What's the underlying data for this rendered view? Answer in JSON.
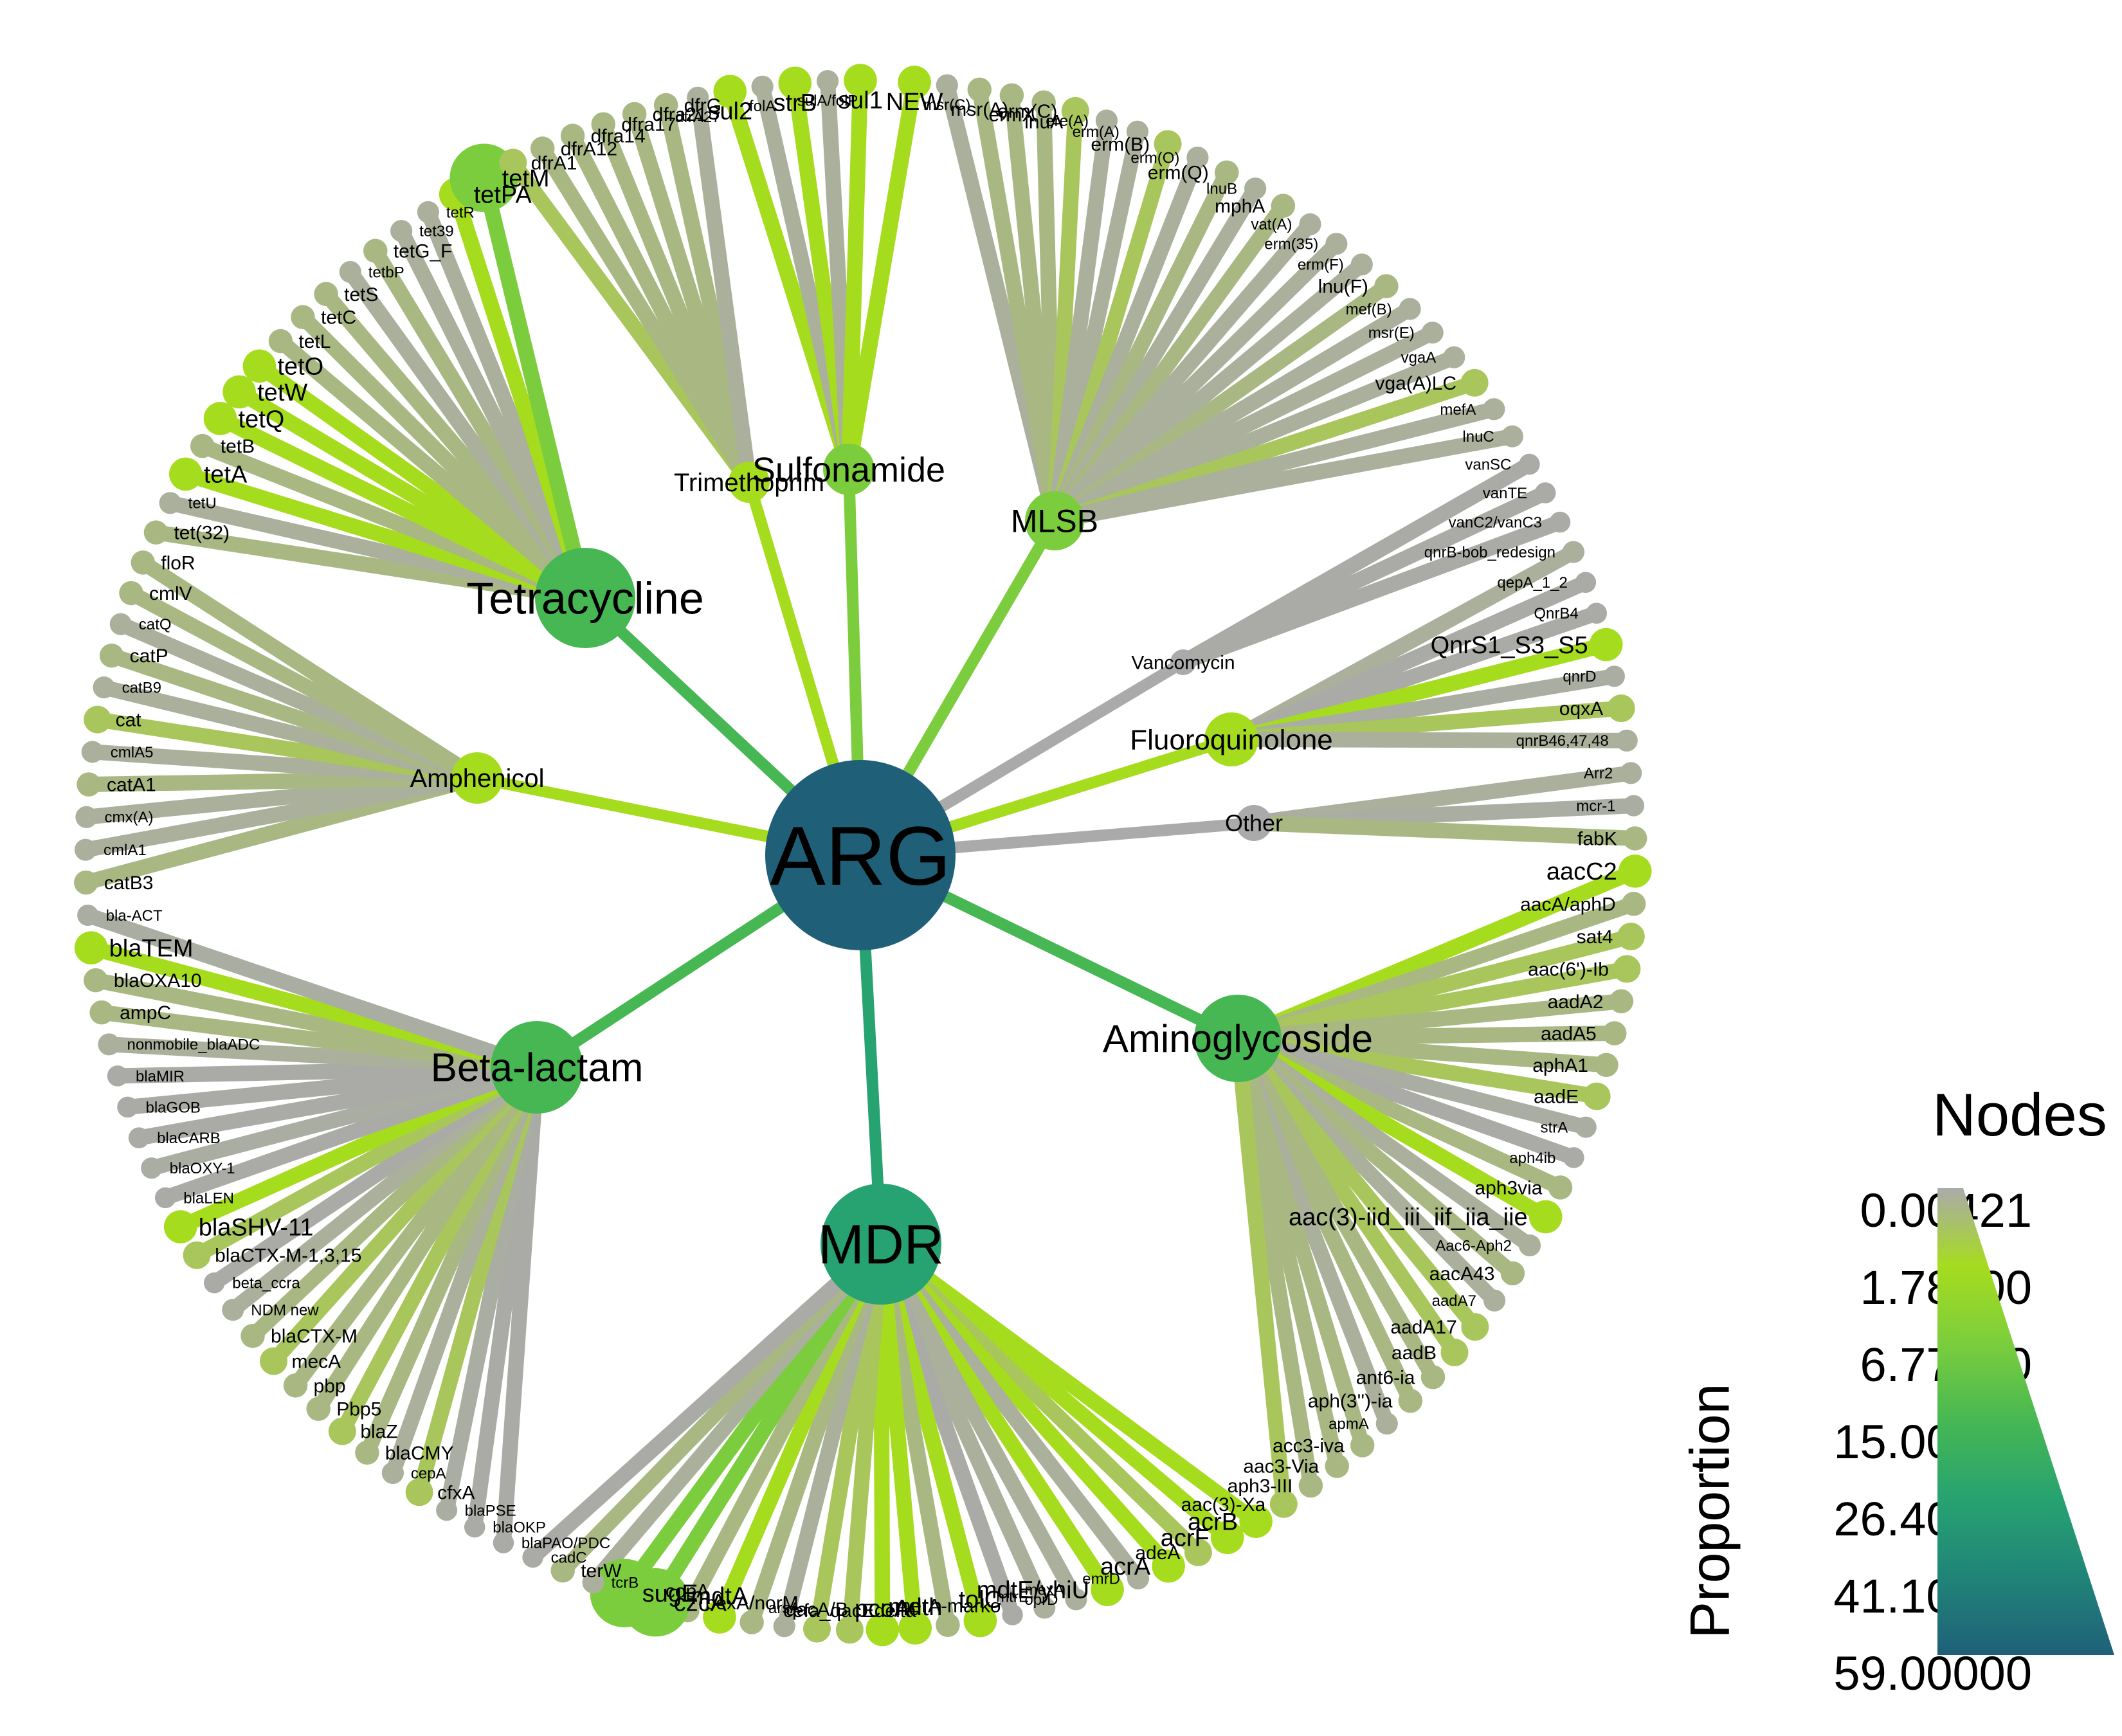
{
  "diagram": {
    "root": {
      "label": "ARG",
      "proportion": 59.0
    },
    "categories": [
      {
        "label": "Tetracycline",
        "proportion": 15.0
      },
      {
        "label": "Sulfonamide",
        "proportion": 6.77
      },
      {
        "label": "Trimethoprim",
        "proportion": 1.78
      },
      {
        "label": "MLSB",
        "proportion": 6.77
      },
      {
        "label": "Vancomycin",
        "proportion": 0.00421
      },
      {
        "label": "Fluoroquinolone",
        "proportion": 1.78
      },
      {
        "label": "Other",
        "proportion": 0.00421
      },
      {
        "label": "Aminoglycoside",
        "proportion": 15.0
      },
      {
        "label": "MDR",
        "proportion": 26.4
      },
      {
        "label": "Beta-lactam",
        "proportion": 15.0
      },
      {
        "label": "Amphenicol",
        "proportion": 1.78
      }
    ],
    "leaves": [
      {
        "label": "NEW",
        "cat": "Sulfonamide",
        "v": 1.78
      },
      {
        "label": "msr(C)",
        "cat": "MLSB",
        "v": 0.2
      },
      {
        "label": "msr(A)",
        "cat": "MLSB",
        "v": 0.5
      },
      {
        "label": "ermX",
        "cat": "MLSB",
        "v": 0.5
      },
      {
        "label": "lnuA",
        "cat": "MLSB",
        "v": 0.5
      },
      {
        "label": "erm(C)",
        "cat": "MLSB",
        "v": 1.0
      },
      {
        "label": "ere(A)",
        "cat": "MLSB",
        "v": 0.2
      },
      {
        "label": "erm(A)",
        "cat": "MLSB",
        "v": 0.2
      },
      {
        "label": "erm(B)",
        "cat": "MLSB",
        "v": 1.0
      },
      {
        "label": "erm(O)",
        "cat": "MLSB",
        "v": 0.2
      },
      {
        "label": "erm(Q)",
        "cat": "MLSB",
        "v": 0.5
      },
      {
        "label": "lnuB",
        "cat": "MLSB",
        "v": 0.2
      },
      {
        "label": "mphA",
        "cat": "MLSB",
        "v": 0.5
      },
      {
        "label": "vat(A)",
        "cat": "MLSB",
        "v": 0.2
      },
      {
        "label": "erm(35)",
        "cat": "MLSB",
        "v": 0.2
      },
      {
        "label": "erm(F)",
        "cat": "MLSB",
        "v": 0.2
      },
      {
        "label": "lnu(F)",
        "cat": "MLSB",
        "v": 0.5
      },
      {
        "label": "mef(B)",
        "cat": "MLSB",
        "v": 0.2
      },
      {
        "label": "msr(E)",
        "cat": "MLSB",
        "v": 0.2
      },
      {
        "label": "vgaA",
        "cat": "MLSB",
        "v": 0.2
      },
      {
        "label": "vga(A)LC",
        "cat": "MLSB",
        "v": 1.0
      },
      {
        "label": "mefA",
        "cat": "MLSB",
        "v": 0.2
      },
      {
        "label": "lnuC",
        "cat": "MLSB",
        "v": 0.2
      },
      {
        "label": "vanSC",
        "cat": "Vancomycin",
        "v": 0.05
      },
      {
        "label": "vanTE",
        "cat": "Vancomycin",
        "v": 0.05
      },
      {
        "label": "vanC2/vanC3",
        "cat": "Vancomycin",
        "v": 0.05
      },
      {
        "label": "qnrB-bob_redesign",
        "cat": "Fluoroquinolone",
        "v": 0.2
      },
      {
        "label": "qepA_1_2",
        "cat": "Fluoroquinolone",
        "v": 0.05
      },
      {
        "label": "QnrB4",
        "cat": "Fluoroquinolone",
        "v": 0.05
      },
      {
        "label": "QnrS1_S3_S5",
        "cat": "Fluoroquinolone",
        "v": 1.78
      },
      {
        "label": "qnrD",
        "cat": "Fluoroquinolone",
        "v": 0.1
      },
      {
        "label": "oqxA",
        "cat": "Fluoroquinolone",
        "v": 1.0
      },
      {
        "label": "qnrB46,47,48",
        "cat": "Fluoroquinolone",
        "v": 0.2
      },
      {
        "label": "Arr2",
        "cat": "Other",
        "v": 0.2
      },
      {
        "label": "mcr-1",
        "cat": "Other",
        "v": 0.1
      },
      {
        "label": "fabK",
        "cat": "Other",
        "v": 0.5
      },
      {
        "label": "aacC2",
        "cat": "Aminoglycoside",
        "v": 1.78
      },
      {
        "label": "aacA/aphD",
        "cat": "Aminoglycoside",
        "v": 0.5
      },
      {
        "label": "sat4",
        "cat": "Aminoglycoside",
        "v": 1.0
      },
      {
        "label": "aac(6')-Ib",
        "cat": "Aminoglycoside",
        "v": 1.0
      },
      {
        "label": "aadA2",
        "cat": "Aminoglycoside",
        "v": 0.5
      },
      {
        "label": "aadA5",
        "cat": "Aminoglycoside",
        "v": 0.5
      },
      {
        "label": "aphA1",
        "cat": "Aminoglycoside",
        "v": 0.5
      },
      {
        "label": "aadE",
        "cat": "Aminoglycoside",
        "v": 1.0
      },
      {
        "label": "strA",
        "cat": "Aminoglycoside",
        "v": 0.1
      },
      {
        "label": "aph4ib",
        "cat": "Aminoglycoside",
        "v": 0.05
      },
      {
        "label": "aph3via",
        "cat": "Aminoglycoside",
        "v": 0.5
      },
      {
        "label": "aac(3)-iid_iii_iif_iia_iie",
        "cat": "Aminoglycoside",
        "v": 1.78
      },
      {
        "label": "Aac6-Aph2",
        "cat": "Aminoglycoside",
        "v": 0.2
      },
      {
        "label": "aacA43",
        "cat": "Aminoglycoside",
        "v": 0.5
      },
      {
        "label": "aadA7",
        "cat": "Aminoglycoside",
        "v": 0.2
      },
      {
        "label": "aadA17",
        "cat": "Aminoglycoside",
        "v": 1.0
      },
      {
        "label": "aadB",
        "cat": "Aminoglycoside",
        "v": 1.0
      },
      {
        "label": "ant6-ia",
        "cat": "Aminoglycoside",
        "v": 0.5
      },
      {
        "label": "aph(3'')-ia",
        "cat": "Aminoglycoside",
        "v": 0.5
      },
      {
        "label": "apmA",
        "cat": "Aminoglycoside",
        "v": 0.2
      },
      {
        "label": "acc3-iva",
        "cat": "Aminoglycoside",
        "v": 0.5
      },
      {
        "label": "aac3-Via",
        "cat": "Aminoglycoside",
        "v": 0.5
      },
      {
        "label": "aph3-III",
        "cat": "Aminoglycoside",
        "v": 0.5
      },
      {
        "label": "aac(3)-Xa",
        "cat": "Aminoglycoside",
        "v": 1.0
      },
      {
        "label": "acrB",
        "cat": "MDR",
        "v": 1.78
      },
      {
        "label": "acrF",
        "cat": "MDR",
        "v": 1.78
      },
      {
        "label": "adeA",
        "cat": "MDR",
        "v": 1.0
      },
      {
        "label": "acrA",
        "cat": "MDR",
        "v": 1.78
      },
      {
        "label": "emrD",
        "cat": "MDR",
        "v": 0.2
      },
      {
        "label": "mdtE/yhiU",
        "cat": "MDR",
        "v": 1.78
      },
      {
        "label": "oprD",
        "cat": "MDR",
        "v": 0.2
      },
      {
        "label": "mexA",
        "cat": "MDR",
        "v": 0.2
      },
      {
        "label": "mtrE",
        "cat": "MDR",
        "v": 0.05
      },
      {
        "label": "tolC",
        "cat": "MDR",
        "v": 1.78
      },
      {
        "label": "merA-marko",
        "cat": "MDR",
        "v": 0.5
      },
      {
        "label": "mdth",
        "cat": "MDR",
        "v": 1.78
      },
      {
        "label": "pcoA",
        "cat": "MDR",
        "v": 1.78
      },
      {
        "label": "cefa_qacEdelta",
        "cat": "MDR",
        "v": 1.0
      },
      {
        "label": "qacA/B",
        "cat": "MDR",
        "v": 1.0
      },
      {
        "label": "arsA",
        "cat": "MDR",
        "v": 0.2
      },
      {
        "label": "bexA/norM",
        "cat": "MDR",
        "v": 0.5
      },
      {
        "label": "mdtA",
        "cat": "MDR",
        "v": 1.78
      },
      {
        "label": "copA",
        "cat": "MDR",
        "v": 0.5
      },
      {
        "label": "czcA",
        "cat": "MDR",
        "v": 6.77
      },
      {
        "label": "sugE",
        "cat": "MDR",
        "v": 6.77
      },
      {
        "label": "tcrB",
        "cat": "MDR",
        "v": 0.2
      },
      {
        "label": "terW",
        "cat": "MDR",
        "v": 0.5
      },
      {
        "label": "cadC",
        "cat": "MDR",
        "v": 0.05
      },
      {
        "label": "blaPAO/PDC",
        "cat": "Beta-lactam",
        "v": 0.05
      },
      {
        "label": "blaOKP",
        "cat": "Beta-lactam",
        "v": 0.05
      },
      {
        "label": "blaPSE",
        "cat": "Beta-lactam",
        "v": 0.1
      },
      {
        "label": "cfxA",
        "cat": "Beta-lactam",
        "v": 1.0
      },
      {
        "label": "cepA",
        "cat": "Beta-lactam",
        "v": 0.2
      },
      {
        "label": "blaCMY",
        "cat": "Beta-lactam",
        "v": 0.5
      },
      {
        "label": "blaZ",
        "cat": "Beta-lactam",
        "v": 1.0
      },
      {
        "label": "Pbp5",
        "cat": "Beta-lactam",
        "v": 0.5
      },
      {
        "label": "pbp",
        "cat": "Beta-lactam",
        "v": 0.5
      },
      {
        "label": "mecA",
        "cat": "Beta-lactam",
        "v": 1.0
      },
      {
        "label": "blaCTX-M",
        "cat": "Beta-lactam",
        "v": 0.5
      },
      {
        "label": "NDM new",
        "cat": "Beta-lactam",
        "v": 0.2
      },
      {
        "label": "beta_ccra",
        "cat": "Beta-lactam",
        "v": 0.05
      },
      {
        "label": "blaCTX-M-1,3,15",
        "cat": "Beta-lactam",
        "v": 1.0
      },
      {
        "label": "blaSHV-11",
        "cat": "Beta-lactam",
        "v": 1.78
      },
      {
        "label": "blaLEN",
        "cat": "Beta-lactam",
        "v": 0.05
      },
      {
        "label": "blaOXY-1",
        "cat": "Beta-lactam",
        "v": 0.1
      },
      {
        "label": "blaCARB",
        "cat": "Beta-lactam",
        "v": 0.05
      },
      {
        "label": "blaGOB",
        "cat": "Beta-lactam",
        "v": 0.05
      },
      {
        "label": "blaMIR",
        "cat": "Beta-lactam",
        "v": 0.05
      },
      {
        "label": "nonmobile_blaADC",
        "cat": "Beta-lactam",
        "v": 0.2
      },
      {
        "label": "ampC",
        "cat": "Beta-lactam",
        "v": 0.5
      },
      {
        "label": "blaOXA10",
        "cat": "Beta-lactam",
        "v": 0.5
      },
      {
        "label": "blaTEM",
        "cat": "Beta-lactam",
        "v": 1.78
      },
      {
        "label": "bla-ACT",
        "cat": "Beta-lactam",
        "v": 0.1
      },
      {
        "label": "catB3",
        "cat": "Amphenicol",
        "v": 0.5
      },
      {
        "label": "cmlA1",
        "cat": "Amphenicol",
        "v": 0.2
      },
      {
        "label": "cmx(A)",
        "cat": "Amphenicol",
        "v": 0.2
      },
      {
        "label": "catA1",
        "cat": "Amphenicol",
        "v": 0.5
      },
      {
        "label": "cmlA5",
        "cat": "Amphenicol",
        "v": 0.2
      },
      {
        "label": "cat",
        "cat": "Amphenicol",
        "v": 1.0
      },
      {
        "label": "catB9",
        "cat": "Amphenicol",
        "v": 0.2
      },
      {
        "label": "catP",
        "cat": "Amphenicol",
        "v": 0.5
      },
      {
        "label": "catQ",
        "cat": "Amphenicol",
        "v": 0.2
      },
      {
        "label": "cmlV",
        "cat": "Amphenicol",
        "v": 0.5
      },
      {
        "label": "floR",
        "cat": "Amphenicol",
        "v": 0.5
      },
      {
        "label": "tet(32)",
        "cat": "Tetracycline",
        "v": 0.5
      },
      {
        "label": "tetU",
        "cat": "Tetracycline",
        "v": 0.2
      },
      {
        "label": "tetA",
        "cat": "Tetracycline",
        "v": 1.78
      },
      {
        "label": "tetB",
        "cat": "Tetracycline",
        "v": 0.5
      },
      {
        "label": "tetQ",
        "cat": "Tetracycline",
        "v": 1.78
      },
      {
        "label": "tetW",
        "cat": "Tetracycline",
        "v": 1.78
      },
      {
        "label": "tetO",
        "cat": "Tetracycline",
        "v": 1.78
      },
      {
        "label": "tetL",
        "cat": "Tetracycline",
        "v": 0.5
      },
      {
        "label": "tetC",
        "cat": "Tetracycline",
        "v": 0.5
      },
      {
        "label": "tetS",
        "cat": "Tetracycline",
        "v": 0.5
      },
      {
        "label": "tetbP",
        "cat": "Tetracycline",
        "v": 0.2
      },
      {
        "label": "tetG_F",
        "cat": "Tetracycline",
        "v": 0.5
      },
      {
        "label": "tet39",
        "cat": "Tetracycline",
        "v": 0.2
      },
      {
        "label": "tetR",
        "cat": "Tetracycline",
        "v": 0.2
      },
      {
        "label": "tetPA",
        "cat": "Tetracycline",
        "v": 1.78
      },
      {
        "label": "tetM",
        "cat": "Tetracycline",
        "v": 6.77
      },
      {
        "label": "dfrA1",
        "cat": "Trimethoprim",
        "v": 1.0
      },
      {
        "label": "dfrA12",
        "cat": "Trimethoprim",
        "v": 0.5
      },
      {
        "label": "dfra14",
        "cat": "Trimethoprim",
        "v": 0.5
      },
      {
        "label": "dfra17",
        "cat": "Trimethoprim",
        "v": 0.5
      },
      {
        "label": "dfra21",
        "cat": "Trimethoprim",
        "v": 0.5
      },
      {
        "label": "dfrG",
        "cat": "Trimethoprim",
        "v": 0.5
      },
      {
        "label": "dfrA27",
        "cat": "Trimethoprim",
        "v": 0.2
      },
      {
        "label": "sul2",
        "cat": "Sulfonamide",
        "v": 1.78
      },
      {
        "label": "folA",
        "cat": "Sulfonamide",
        "v": 0.2
      },
      {
        "label": "strB",
        "cat": "Sulfonamide",
        "v": 1.78
      },
      {
        "label": "sulA/folP",
        "cat": "Sulfonamide",
        "v": 0.2
      },
      {
        "label": "sul1",
        "cat": "Sulfonamide",
        "v": 1.78
      }
    ]
  },
  "legend": {
    "title": "Nodes",
    "axis_label": "Proportion",
    "ticks": [
      "0.00421",
      "1.78000",
      "6.77000",
      "15.00000",
      "26.40000",
      "41.10000",
      "59.00000"
    ],
    "colors": [
      "#aaaaaa",
      "#a6dc1e",
      "#7bcd3d",
      "#46b753",
      "#27a271",
      "#208478",
      "#1f6078"
    ]
  }
}
